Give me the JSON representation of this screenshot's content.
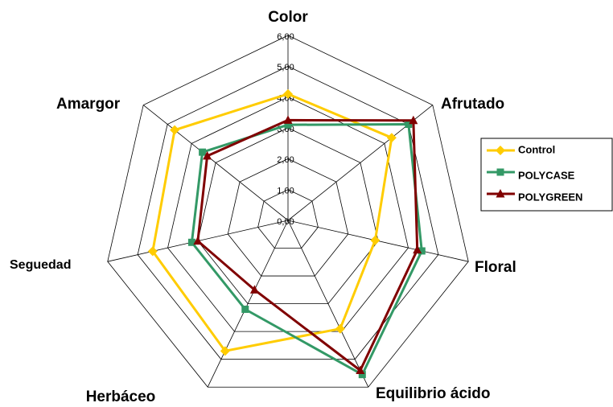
{
  "chart_data": {
    "type": "radar",
    "categories": [
      "Color",
      "Afrutado",
      "Floral",
      "Equilibrio ácido",
      "Herbáceo",
      "Seguedad",
      "Amargor"
    ],
    "series": [
      {
        "name": "Control",
        "color": "#ffcc00",
        "marker": "diamond",
        "values": [
          4.1,
          4.3,
          2.9,
          3.9,
          4.7,
          4.5,
          4.7
        ]
      },
      {
        "name": "POLYCASE",
        "color": "#339966",
        "marker": "square",
        "values": [
          3.1,
          5.0,
          4.45,
          5.55,
          3.2,
          3.2,
          3.55
        ]
      },
      {
        "name": "POLYGREEN",
        "color": "#800000",
        "marker": "triangle",
        "values": [
          3.25,
          5.2,
          4.3,
          5.4,
          2.5,
          3.0,
          3.35
        ]
      }
    ],
    "ylim": [
      0,
      6
    ],
    "yticks": [
      {
        "value": 0,
        "label": "0,00"
      },
      {
        "value": 1,
        "label": "1,00"
      },
      {
        "value": 2,
        "label": "2,00"
      },
      {
        "value": 3,
        "label": "3,00"
      },
      {
        "value": 4,
        "label": "4,00"
      },
      {
        "value": 5,
        "label": "5,00"
      },
      {
        "value": 6,
        "label": "6,00"
      }
    ],
    "grid": true,
    "legend": "right"
  }
}
